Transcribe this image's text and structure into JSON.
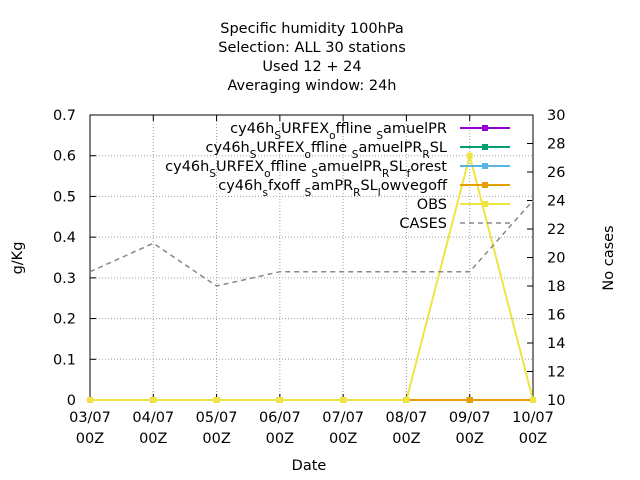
{
  "chart_data": {
    "type": "line",
    "title": [
      "Specific humidity 100hPa",
      "Selection: ALL      30 stations",
      "Used  12 + 24",
      "Averaging window: 24h"
    ],
    "xlabel": "Date",
    "ylabel": "g/Kg",
    "y2label": "No cases",
    "x": [
      "03/07 00Z",
      "04/07 00Z",
      "05/07 00Z",
      "06/07 00Z",
      "07/07 00Z",
      "08/07 00Z",
      "09/07 00Z",
      "10/07 00Z"
    ],
    "x_ticks": [
      [
        "03/07",
        "00Z"
      ],
      [
        "04/07",
        "00Z"
      ],
      [
        "05/07",
        "00Z"
      ],
      [
        "06/07",
        "00Z"
      ],
      [
        "07/07",
        "00Z"
      ],
      [
        "08/07",
        "00Z"
      ],
      [
        "09/07",
        "00Z"
      ],
      [
        "10/07",
        "00Z"
      ]
    ],
    "ylim": [
      0,
      0.7
    ],
    "y_ticks": [
      "0",
      "0.1",
      "0.2",
      "0.3",
      "0.4",
      "0.5",
      "0.6",
      "0.7"
    ],
    "y2lim": [
      10,
      30
    ],
    "y2_ticks": [
      "10",
      "12",
      "14",
      "16",
      "18",
      "20",
      "22",
      "24",
      "26",
      "28",
      "30"
    ],
    "grid": true,
    "legend_position": "top-right",
    "series": [
      {
        "name": "cy46h_SURFEX_offline_SamuelPR",
        "legend": [
          [
            "cy46h",
            ""
          ],
          [
            "S",
            "sub"
          ],
          [
            "URFEX",
            ""
          ],
          [
            "o",
            "sub"
          ],
          [
            "ffline ",
            ""
          ],
          [
            "S",
            "sub"
          ],
          [
            "amuelPR",
            ""
          ]
        ],
        "color": "#9400d3",
        "marker": "square",
        "axis": "y",
        "values": [
          0,
          0,
          0,
          0,
          0,
          0,
          0,
          0
        ]
      },
      {
        "name": "cy46h_SURFEX_offline_SamuelPR_RSL",
        "legend": [
          [
            "cy46h",
            ""
          ],
          [
            "S",
            "sub"
          ],
          [
            "URFEX",
            ""
          ],
          [
            "o",
            "sub"
          ],
          [
            "ffline ",
            ""
          ],
          [
            "S",
            "sub"
          ],
          [
            "amuelPR",
            ""
          ],
          [
            "R",
            "sub"
          ],
          [
            "SL",
            ""
          ]
        ],
        "color": "#009e73",
        "marker": "square",
        "axis": "y",
        "values": [
          0,
          0,
          0,
          0,
          0,
          0,
          0,
          0
        ]
      },
      {
        "name": "cy46h_SURFEX_offline_SamuelPR_RSL_forest",
        "legend": [
          [
            "cy46h",
            ""
          ],
          [
            "S",
            "sub"
          ],
          [
            "URFEX",
            ""
          ],
          [
            "o",
            "sub"
          ],
          [
            "ffline ",
            ""
          ],
          [
            "S",
            "sub"
          ],
          [
            "amuelPR",
            ""
          ],
          [
            "R",
            "sub"
          ],
          [
            "SL",
            ""
          ],
          [
            "f",
            "sub"
          ],
          [
            "orest",
            ""
          ]
        ],
        "color": "#56b4e9",
        "marker": "square",
        "axis": "y",
        "values": [
          0,
          0,
          0,
          0,
          0,
          0,
          0,
          0
        ]
      },
      {
        "name": "cy46h_sfxoff_SamPR_RSL_lowvegoff",
        "legend": [
          [
            "cy46h",
            ""
          ],
          [
            "s",
            "sub"
          ],
          [
            "fxoff ",
            ""
          ],
          [
            "S",
            "sub"
          ],
          [
            "amPR",
            ""
          ],
          [
            "R",
            "sub"
          ],
          [
            "SL",
            ""
          ],
          [
            "l",
            "sub"
          ],
          [
            "owvegoff",
            ""
          ]
        ],
        "color": "#e69f00",
        "marker": "square",
        "axis": "y",
        "values": [
          0,
          0,
          0,
          0,
          0,
          0,
          0,
          0
        ]
      },
      {
        "name": "OBS",
        "legend": [
          [
            "OBS",
            ""
          ]
        ],
        "color": "#f0e442",
        "marker": "square",
        "axis": "y",
        "values": [
          0,
          0,
          0,
          0,
          0,
          0,
          0.6,
          0
        ]
      },
      {
        "name": "CASES",
        "legend": [
          [
            "CASES",
            ""
          ]
        ],
        "color": "#888888",
        "marker": "none",
        "dashed": true,
        "axis": "y2",
        "values": [
          19,
          21,
          18,
          19,
          19,
          19,
          19,
          24
        ]
      }
    ]
  }
}
